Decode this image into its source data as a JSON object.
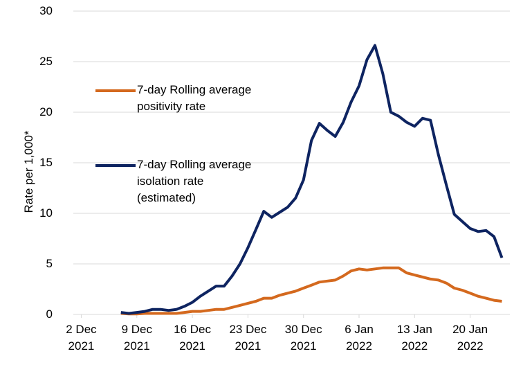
{
  "chart_data": {
    "type": "line",
    "y_label": "Rate per 1,000*",
    "x": [
      "2021-12-07",
      "2021-12-08",
      "2021-12-09",
      "2021-12-10",
      "2021-12-11",
      "2021-12-12",
      "2021-12-13",
      "2021-12-14",
      "2021-12-15",
      "2021-12-16",
      "2021-12-17",
      "2021-12-18",
      "2021-12-19",
      "2021-12-20",
      "2021-12-21",
      "2021-12-22",
      "2021-12-23",
      "2021-12-24",
      "2021-12-25",
      "2021-12-26",
      "2021-12-27",
      "2021-12-28",
      "2021-12-29",
      "2021-12-30",
      "2021-12-31",
      "2022-01-01",
      "2022-01-02",
      "2022-01-03",
      "2022-01-04",
      "2022-01-05",
      "2022-01-06",
      "2022-01-07",
      "2022-01-08",
      "2022-01-09",
      "2022-01-10",
      "2022-01-11",
      "2022-01-12",
      "2022-01-13",
      "2022-01-14",
      "2022-01-15",
      "2022-01-16",
      "2022-01-17",
      "2022-01-18",
      "2022-01-19",
      "2022-01-20",
      "2022-01-21",
      "2022-01-22",
      "2022-01-23",
      "2022-01-24"
    ],
    "series": [
      {
        "name": "7-day Rolling average positivity rate",
        "color": "#d4691e",
        "values": [
          0.1,
          0.05,
          0.05,
          0.1,
          0.1,
          0.1,
          0.1,
          0.1,
          0.2,
          0.3,
          0.3,
          0.4,
          0.5,
          0.5,
          0.7,
          0.9,
          1.1,
          1.3,
          1.6,
          1.6,
          1.9,
          2.1,
          2.3,
          2.6,
          2.9,
          3.2,
          3.3,
          3.4,
          3.8,
          4.3,
          4.5,
          4.4,
          4.5,
          4.6,
          4.6,
          4.6,
          4.1,
          3.9,
          3.7,
          3.5,
          3.4,
          3.1,
          2.6,
          2.4,
          2.1,
          1.8,
          1.6,
          1.4,
          1.3
        ]
      },
      {
        "name": "7-day Rolling average isolation rate (estimated)",
        "color": "#0e2461",
        "values": [
          0.2,
          0.1,
          0.2,
          0.3,
          0.5,
          0.5,
          0.4,
          0.5,
          0.8,
          1.2,
          1.8,
          2.3,
          2.8,
          2.8,
          3.8,
          5.0,
          6.6,
          8.4,
          10.2,
          9.6,
          10.1,
          10.6,
          11.5,
          13.3,
          17.2,
          18.9,
          18.2,
          17.6,
          19.0,
          21.0,
          22.6,
          25.2,
          26.6,
          23.8,
          20.0,
          19.6,
          19.0,
          18.6,
          19.4,
          19.2,
          15.8,
          12.8,
          9.9,
          9.2,
          8.5,
          8.2,
          8.3,
          7.7,
          5.6
        ]
      }
    ],
    "xlim": [
      "2021-12-01",
      "2022-01-25"
    ],
    "xticks": [
      {
        "value": "2021-12-02",
        "label": "2 Dec\n2021"
      },
      {
        "value": "2021-12-09",
        "label": "9 Dec\n2021"
      },
      {
        "value": "2021-12-16",
        "label": "16 Dec\n2021"
      },
      {
        "value": "2021-12-23",
        "label": "23 Dec\n2021"
      },
      {
        "value": "2021-12-30",
        "label": "30 Dec\n2021"
      },
      {
        "value": "2022-01-06",
        "label": "6 Jan\n2022"
      },
      {
        "value": "2022-01-13",
        "label": "13 Jan\n2022"
      },
      {
        "value": "2022-01-20",
        "label": "20 Jan\n2022"
      }
    ],
    "ylim": [
      0,
      30
    ],
    "yticks": [
      0,
      5,
      10,
      15,
      20,
      25,
      30
    ],
    "grid": true,
    "legend": "left"
  }
}
